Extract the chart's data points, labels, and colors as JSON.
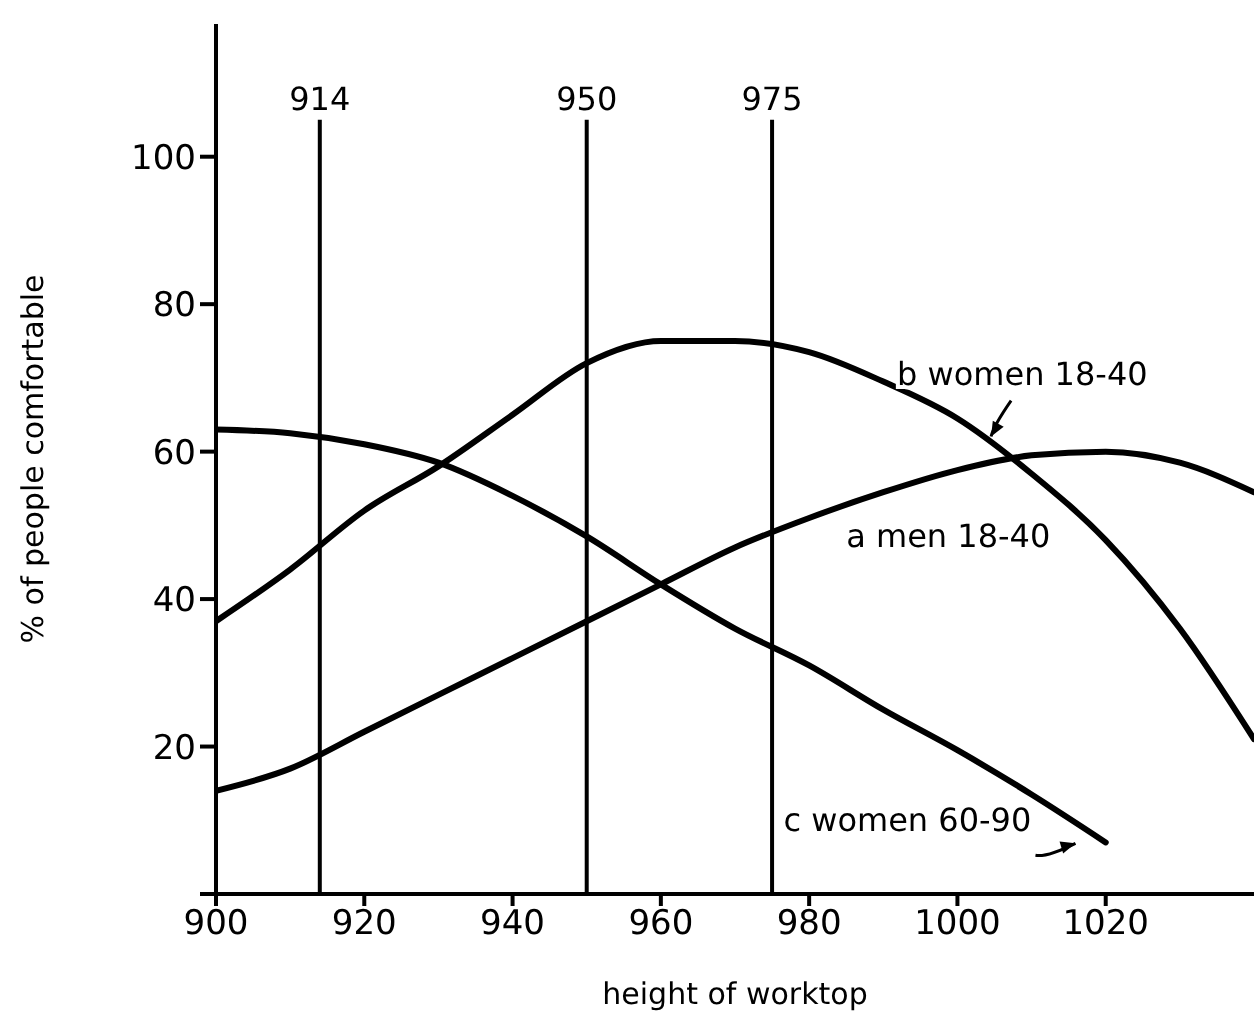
{
  "chart_data": {
    "type": "line",
    "xlabel": "height of worktop",
    "ylabel": "% of people comfortable",
    "x": [
      900,
      910,
      920,
      930,
      940,
      950,
      960,
      970,
      980,
      990,
      1000,
      1010,
      1020,
      1030,
      1040
    ],
    "series": [
      {
        "name": "a men 18-40",
        "color": "#000000",
        "values": [
          14,
          17,
          22,
          27,
          32,
          37,
          42,
          47,
          51,
          54.5,
          57.5,
          59.5,
          60,
          58.5,
          54.5
        ]
      },
      {
        "name": "b women 18-40",
        "color": "#000000",
        "values": [
          37,
          44,
          52,
          58,
          65,
          72,
          75,
          75,
          73.5,
          69.5,
          64.5,
          57,
          48,
          36,
          21
        ]
      },
      {
        "name": "c women 60-90",
        "color": "#000000",
        "values": [
          63,
          62.5,
          61,
          58.5,
          54,
          48.5,
          42,
          36,
          31,
          25,
          19.5,
          13.5,
          7,
          null,
          null
        ]
      }
    ],
    "xlim": [
      900,
      1040
    ],
    "xticks": [
      900,
      920,
      940,
      960,
      980,
      1000,
      1020
    ],
    "ylim": [
      0,
      118
    ],
    "yticks": [
      {
        "value": 0,
        "label": null
      },
      20,
      40,
      60,
      80,
      100
    ],
    "ref_lines": [
      {
        "axis": "x",
        "value": 914,
        "label": "914",
        "color": "#000000"
      },
      {
        "axis": "x",
        "value": 950,
        "label": "950",
        "color": "#000000"
      },
      {
        "axis": "x",
        "value": 975,
        "label": "975",
        "color": "#000000"
      }
    ],
    "grid": false,
    "legend": false,
    "marker": "none",
    "line_style": "solid"
  }
}
